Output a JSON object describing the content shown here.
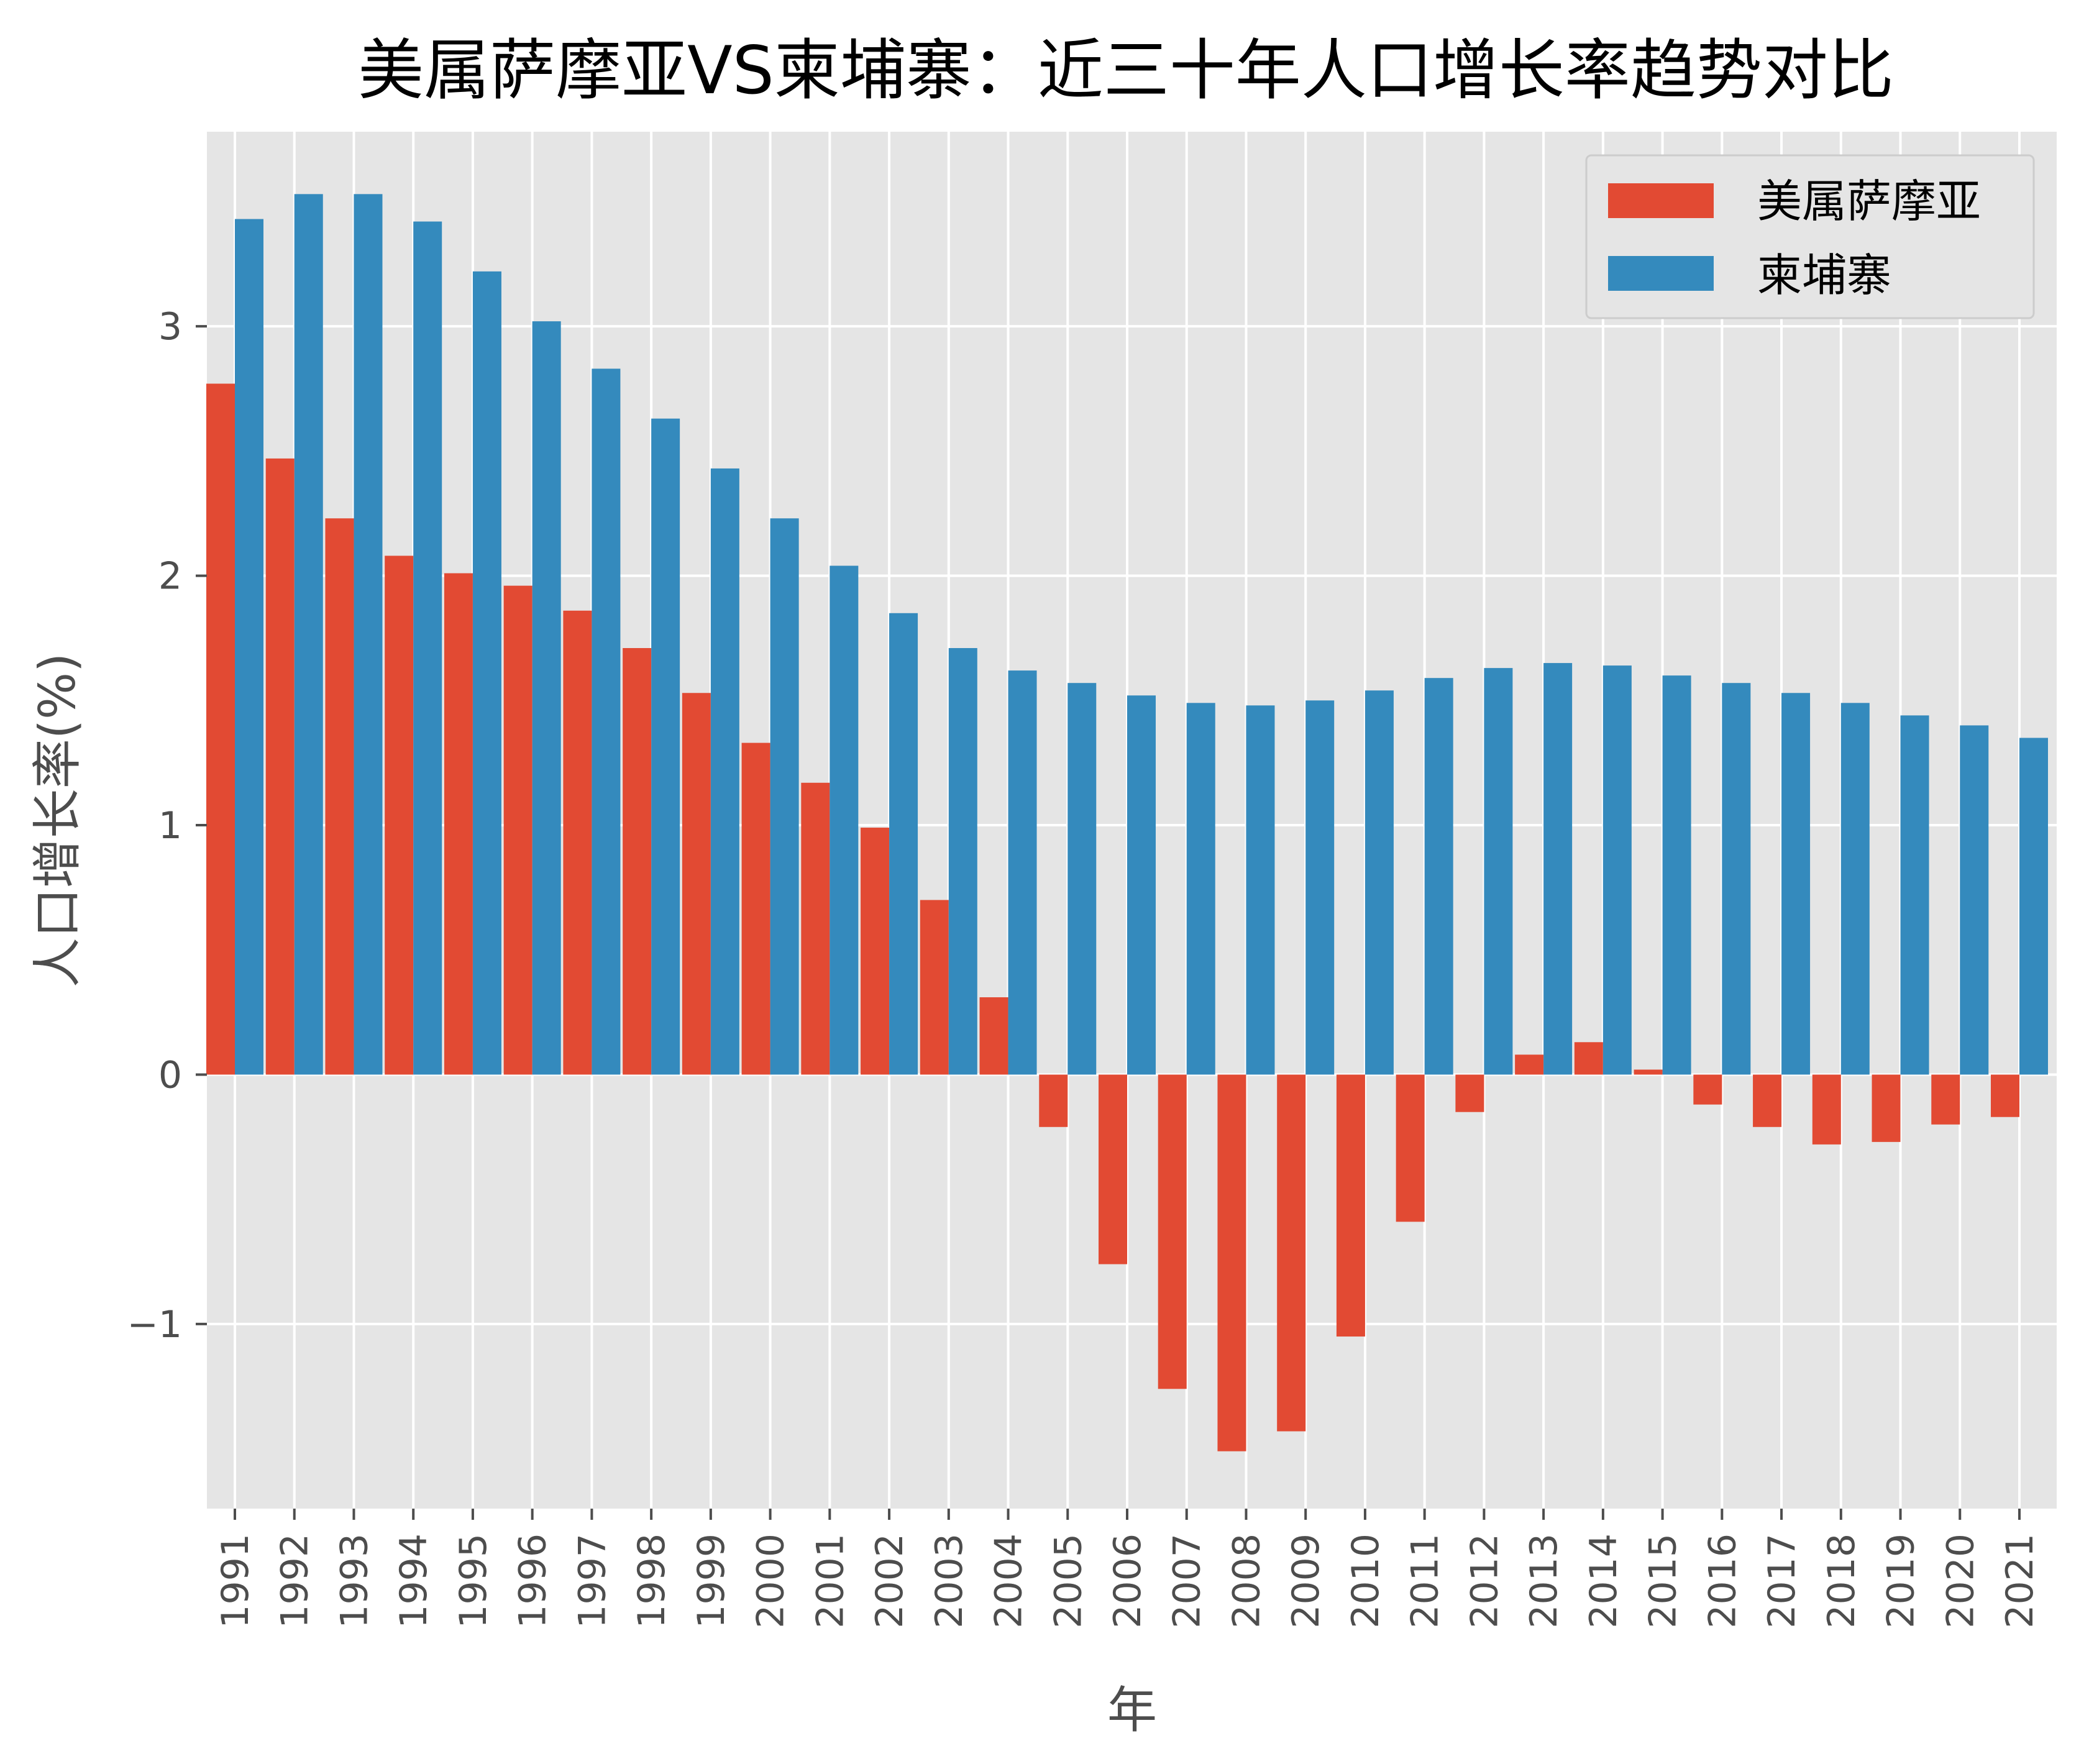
{
  "chart_data": {
    "type": "bar",
    "title": "美属萨摩亚VS柬埔寨：近三十年人口增长率趋势对比",
    "xlabel": "年",
    "ylabel": "人口增长率(%)",
    "categories": [
      "1991",
      "1992",
      "1993",
      "1994",
      "1995",
      "1996",
      "1997",
      "1998",
      "1999",
      "2000",
      "2001",
      "2002",
      "2003",
      "2004",
      "2005",
      "2006",
      "2007",
      "2008",
      "2009",
      "2010",
      "2011",
      "2012",
      "2013",
      "2014",
      "2015",
      "2016",
      "2017",
      "2018",
      "2019",
      "2020",
      "2021"
    ],
    "series": [
      {
        "name": "美属萨摩亚",
        "color": "#E24A33",
        "values": [
          2.77,
          2.47,
          2.23,
          2.08,
          2.01,
          1.96,
          1.86,
          1.71,
          1.53,
          1.33,
          1.17,
          0.99,
          0.7,
          0.31,
          -0.21,
          -0.76,
          -1.26,
          -1.51,
          -1.43,
          -1.05,
          -0.59,
          -0.15,
          0.08,
          0.13,
          0.02,
          -0.12,
          -0.21,
          -0.28,
          -0.27,
          -0.2,
          -0.17
        ]
      },
      {
        "name": "柬埔寨",
        "color": "#348ABD",
        "values": [
          3.43,
          3.53,
          3.53,
          3.42,
          3.22,
          3.02,
          2.83,
          2.63,
          2.43,
          2.23,
          2.04,
          1.85,
          1.71,
          1.62,
          1.57,
          1.52,
          1.49,
          1.48,
          1.5,
          1.54,
          1.59,
          1.63,
          1.65,
          1.64,
          1.6,
          1.57,
          1.53,
          1.49,
          1.44,
          1.4,
          1.35
        ]
      }
    ],
    "ylim": [
      -1.74,
      3.78
    ],
    "yticks": [
      -1,
      0,
      1,
      2,
      3
    ],
    "grid": true,
    "legend_position": "top-right",
    "background_color": "#E5E5E5",
    "grid_color": "#FFFFFF"
  }
}
